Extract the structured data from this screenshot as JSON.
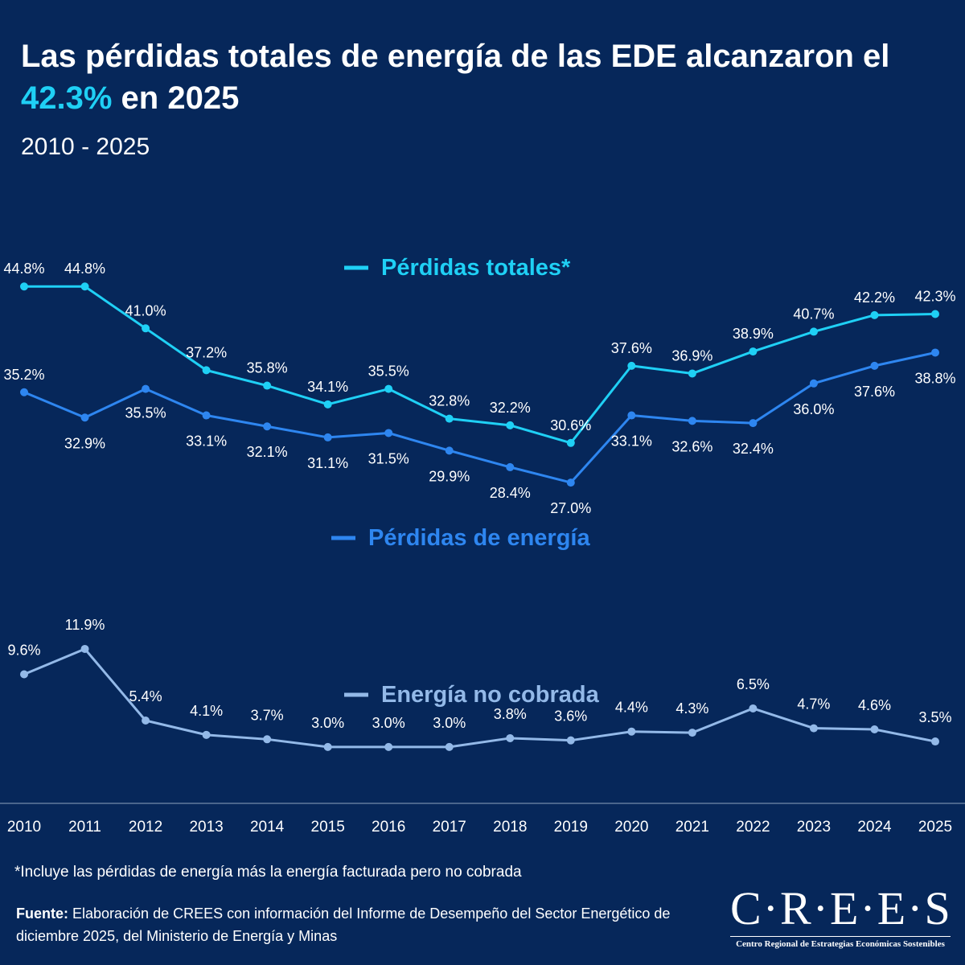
{
  "header": {
    "title_main": "Las pérdidas totales de energía de las EDE alcanzaron el ",
    "title_highlight": "42.3%",
    "title_end": " en 2025",
    "subtitle": "2010 - 2025"
  },
  "chart_data": {
    "type": "line",
    "title": "Las pérdidas totales de energía de las EDE alcanzaron el 42.3% en 2025",
    "subtitle": "2010 - 2025",
    "x": [
      "2010",
      "2011",
      "2012",
      "2013",
      "2014",
      "2015",
      "2016",
      "2017",
      "2018",
      "2019",
      "2020",
      "2021",
      "2022",
      "2023",
      "2024",
      "2025"
    ],
    "legend_placement": "inline next to each series",
    "grid": false,
    "series": [
      {
        "name": "Pérdidas totales*",
        "color": "#1fd0f5",
        "values": [
          44.8,
          44.8,
          41.0,
          37.2,
          35.8,
          34.1,
          35.5,
          32.8,
          32.2,
          30.6,
          37.6,
          36.9,
          38.9,
          40.7,
          42.2,
          42.3
        ],
        "labels": [
          "44.8%",
          "44.8%",
          "41.0%",
          "37.2%",
          "35.8%",
          "34.1%",
          "35.5%",
          "32.8%",
          "32.2%",
          "30.6%",
          "37.6%",
          "36.9%",
          "38.9%",
          "40.7%",
          "42.2%",
          "42.3%"
        ]
      },
      {
        "name": "Pérdidas de energía",
        "color": "#2e86f0",
        "values": [
          35.2,
          32.9,
          35.5,
          33.1,
          32.1,
          31.1,
          31.5,
          29.9,
          28.4,
          27.0,
          33.1,
          32.6,
          32.4,
          36.0,
          37.6,
          38.8
        ],
        "labels": [
          "35.2%",
          "32.9%",
          "35.5%",
          "33.1%",
          "32.1%",
          "31.1%",
          "31.5%",
          "29.9%",
          "28.4%",
          "27.0%",
          "33.1%",
          "32.6%",
          "32.4%",
          "36.0%",
          "37.6%",
          "38.8%"
        ]
      },
      {
        "name": "Energía no cobrada",
        "color": "#93b9e8",
        "values": [
          9.6,
          11.9,
          5.4,
          4.1,
          3.7,
          3.0,
          3.0,
          3.0,
          3.8,
          3.6,
          4.4,
          4.3,
          6.5,
          4.7,
          4.6,
          3.5
        ],
        "labels": [
          "9.6%",
          "11.9%",
          "5.4%",
          "4.1%",
          "3.7%",
          "3.0%",
          "3.0%",
          "3.0%",
          "3.8%",
          "3.6%",
          "4.4%",
          "4.3%",
          "6.5%",
          "4.7%",
          "4.6%",
          "3.5%"
        ]
      }
    ]
  },
  "footnote": "*Incluye las pérdidas de energía más la energía facturada pero no cobrada",
  "source": {
    "label": "Fuente:",
    "text": " Elaboración de CREES con información del Informe de Desempeño del Sector Energético de diciembre 2025, del Ministerio de Energía y Minas"
  },
  "logo": {
    "wordmark": "C·R·E·E·S",
    "tagline": "Centro Regional de Estrategias Económicas Sostenibles"
  }
}
